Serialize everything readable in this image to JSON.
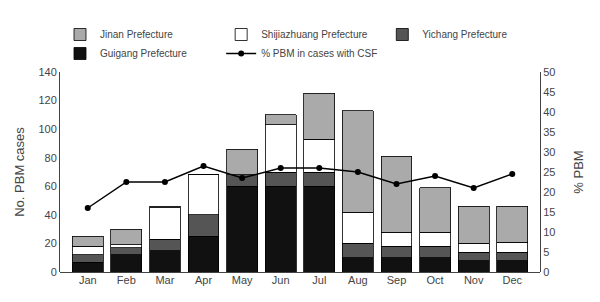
{
  "chart_data": {
    "type": "bar",
    "stacked": true,
    "categories": [
      "Jan",
      "Feb",
      "Mar",
      "Apr",
      "May",
      "Jun",
      "Jul",
      "Aug",
      "Sep",
      "Oct",
      "Nov",
      "Dec"
    ],
    "ylabel": "No. PBM cases",
    "y2label": "% PBM",
    "ylim": [
      0,
      140
    ],
    "yticks": [
      0,
      20,
      40,
      60,
      80,
      100,
      120,
      140
    ],
    "y2lim": [
      0,
      50
    ],
    "y2ticks": [
      0,
      5,
      10,
      15,
      20,
      25,
      30,
      35,
      40,
      45,
      50
    ],
    "grid": false,
    "legend": "top",
    "series": [
      {
        "name": "Guigang Prefecture",
        "color": "#111111",
        "values": [
          7,
          12,
          15,
          25,
          60,
          60,
          60,
          10,
          10,
          10,
          8,
          8
        ]
      },
      {
        "name": "Yichang Prefecture",
        "color": "#555555",
        "values": [
          5,
          5,
          8,
          15,
          8,
          10,
          10,
          10,
          8,
          8,
          6,
          6
        ]
      },
      {
        "name": "Shijiazhuang Prefecture",
        "color": "#ffffff",
        "values": [
          6,
          2,
          22,
          28,
          0,
          33,
          23,
          22,
          10,
          10,
          6,
          7
        ]
      },
      {
        "name": "Jinan Prefecture",
        "color": "#aaaaaa",
        "values": [
          7,
          11,
          1,
          0,
          18,
          7,
          32,
          71,
          53,
          31,
          26,
          25
        ]
      },
      {
        "name": "% PBM in cases with CSF",
        "type": "line",
        "axis": "y2",
        "color": "#000000",
        "marker": "circle",
        "values": [
          16,
          22.5,
          22.5,
          26.5,
          23.5,
          26,
          26,
          25,
          22,
          24,
          21,
          24.5
        ]
      }
    ]
  }
}
